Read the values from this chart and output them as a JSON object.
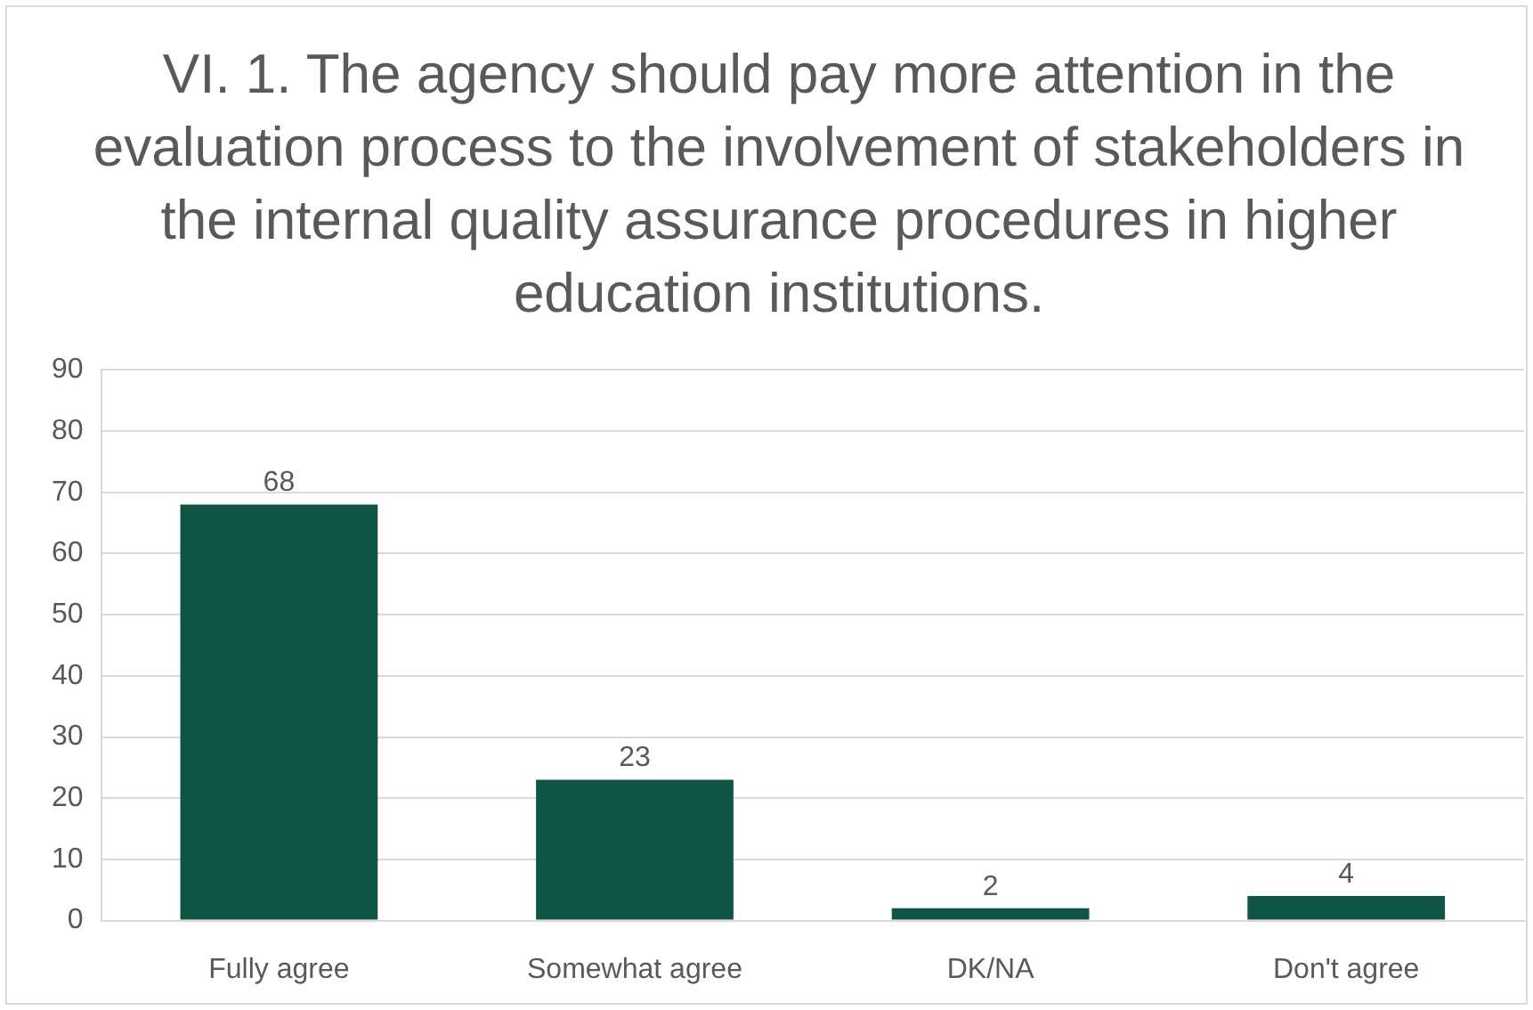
{
  "chart_data": {
    "type": "bar",
    "title": "VI. 1. The agency should pay more attention in the evaluation process to the involvement of stakeholders in the internal quality assurance procedures in higher education institutions.",
    "categories": [
      "Fully agree",
      "Somewhat agree",
      "DK/NA",
      "Don't agree"
    ],
    "values": [
      68,
      23,
      2,
      4
    ],
    "color": "#0f5445",
    "ylim": [
      0,
      90
    ],
    "yticks": [
      0,
      10,
      20,
      30,
      40,
      50,
      60,
      70,
      80,
      90
    ],
    "grid": "y",
    "legend": false,
    "data_labels": true
  }
}
